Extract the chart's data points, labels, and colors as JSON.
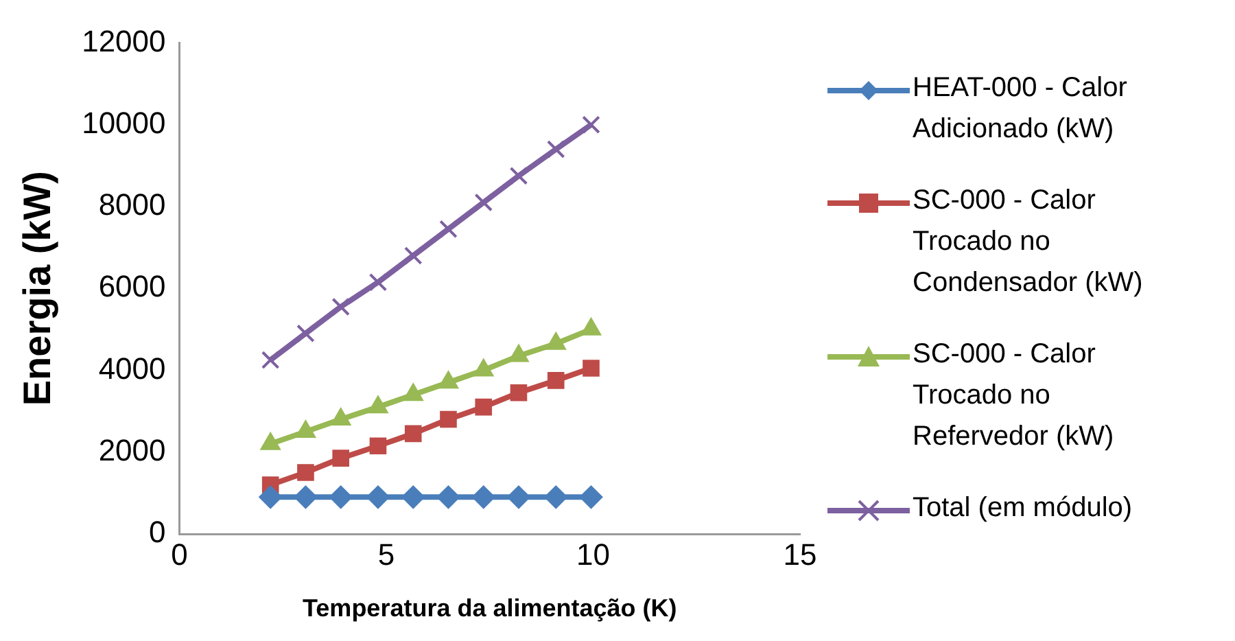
{
  "chart_data": {
    "type": "line",
    "xlabel": "Temperatura da alimentação (K)",
    "ylabel": "Energia (kW)",
    "x": [
      2.2,
      3.05,
      3.9,
      4.8,
      5.65,
      6.5,
      7.35,
      8.2,
      9.1,
      9.95
    ],
    "xlim": [
      0,
      15
    ],
    "xticks": [
      0,
      5,
      10,
      15
    ],
    "ylim": [
      0,
      12000
    ],
    "yticks": [
      0,
      2000,
      4000,
      6000,
      8000,
      10000,
      12000
    ],
    "grid": false,
    "legend": "right",
    "line_style": "solid",
    "series": [
      {
        "name": "HEAT-000 - Calor Adicionado (kW)",
        "color": "#4a7ebb",
        "marker": "diamond",
        "values": [
          900,
          900,
          900,
          900,
          900,
          900,
          900,
          900,
          900,
          900
        ]
      },
      {
        "name": "SC-000 - Calor Trocado no Condensador (kW)",
        "color": "#be4b48",
        "marker": "square",
        "values": [
          1200,
          1500,
          1850,
          2150,
          2450,
          2800,
          3100,
          3450,
          3750,
          4050
        ]
      },
      {
        "name": "SC-000 - Calor Trocado no Refervedor (kW)",
        "color": "#98b954",
        "marker": "triangle",
        "values": [
          2200,
          2500,
          2800,
          3100,
          3400,
          3700,
          4000,
          4350,
          4650,
          5000
        ]
      },
      {
        "name": "Total (em módulo)",
        "color": "#7d60a0",
        "marker": "cross",
        "values": [
          4250,
          4900,
          5550,
          6150,
          6800,
          7450,
          8100,
          8750,
          9400,
          10000
        ]
      }
    ]
  }
}
